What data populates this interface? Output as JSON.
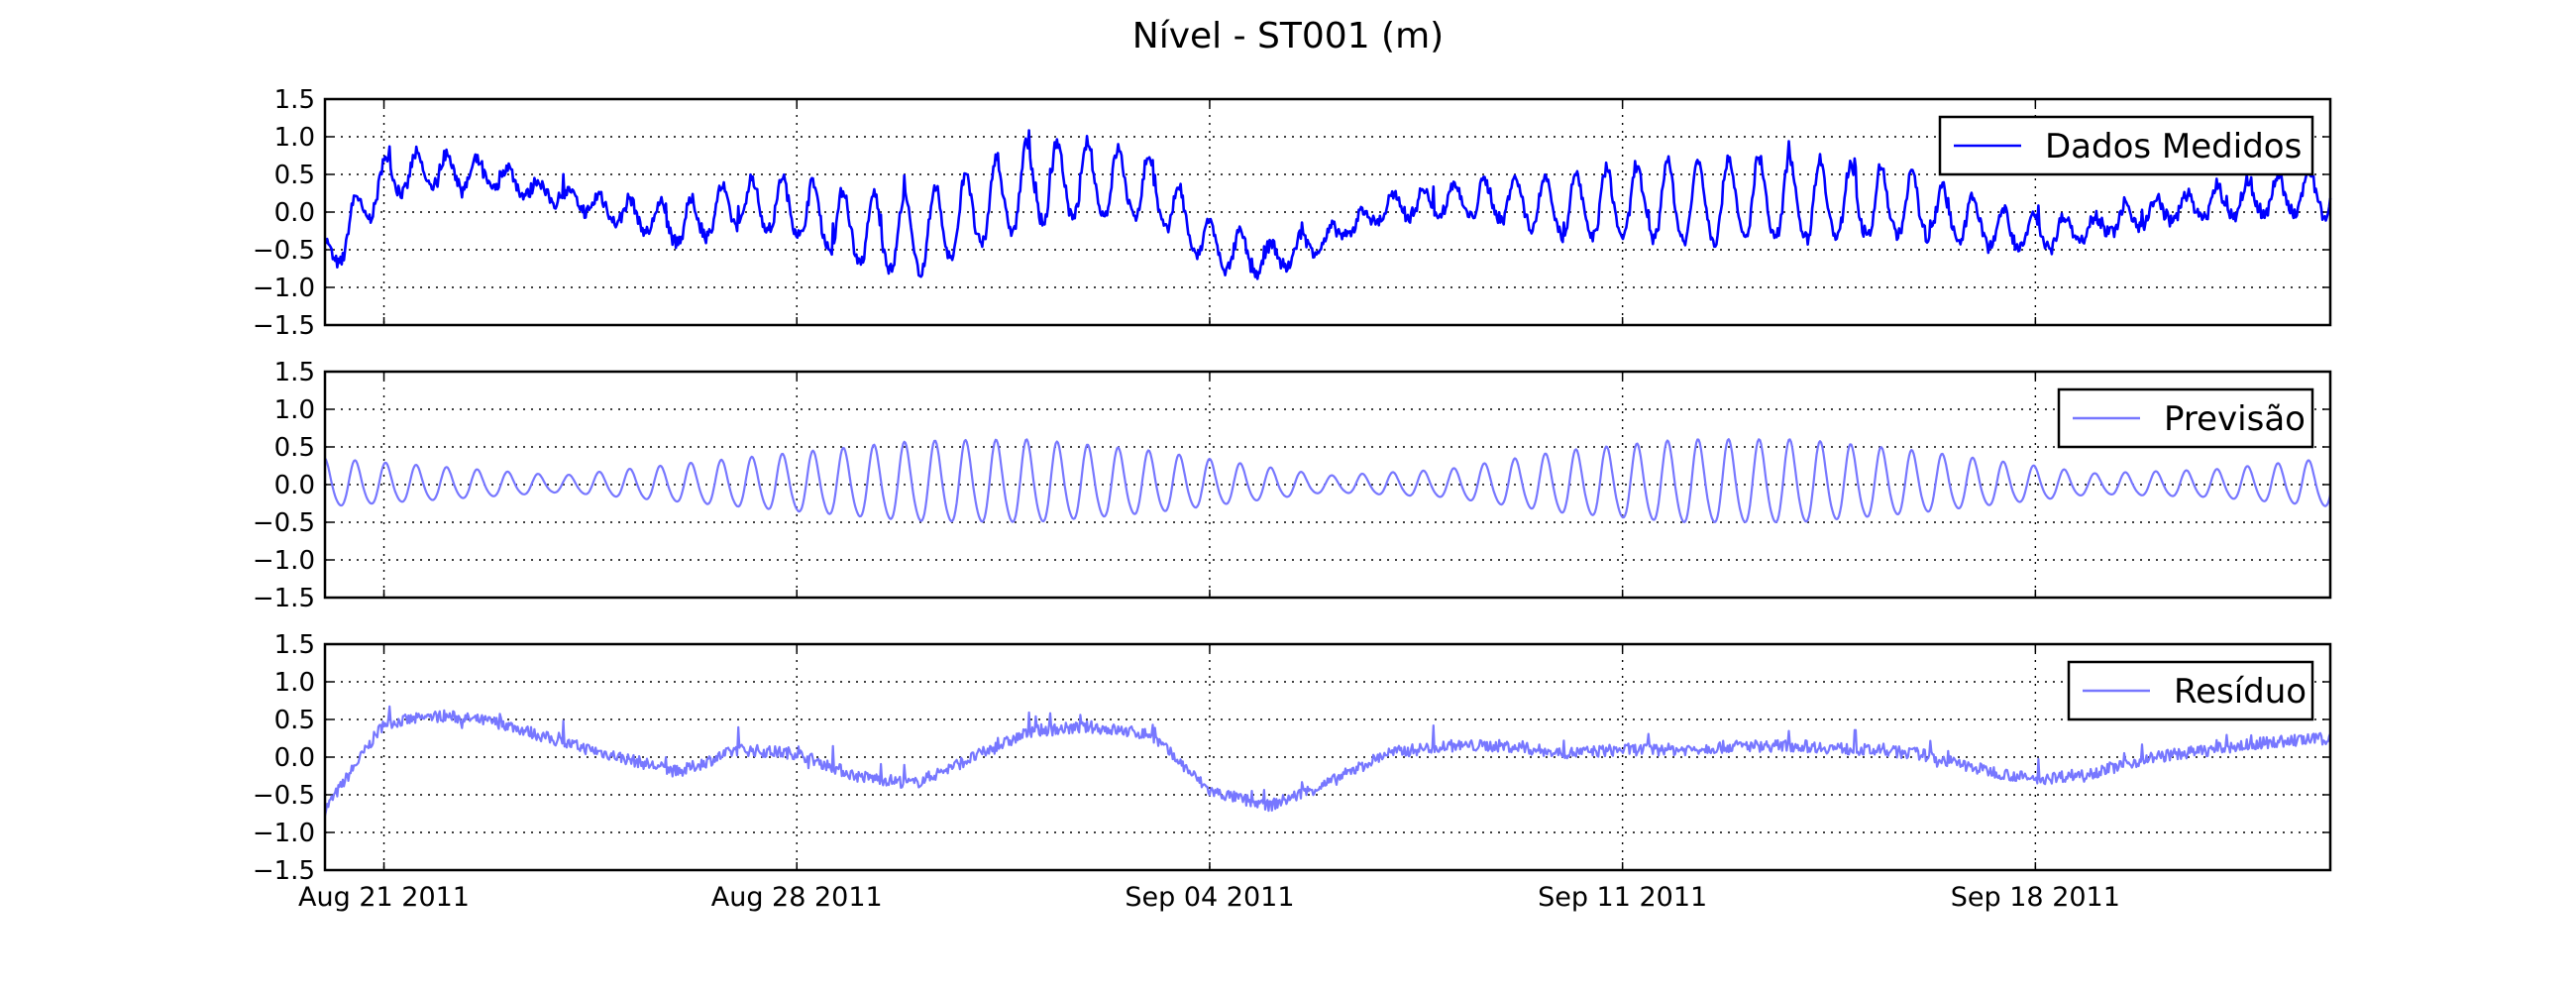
{
  "figure": {
    "title": "Nível - ST001 (m)"
  },
  "chart_data": [
    {
      "type": "line",
      "panel": "top",
      "series": [
        {
          "name": "Dados Medidos",
          "color": "#0000ff",
          "kind": "measured"
        }
      ],
      "x_range": [
        "2011-08-20",
        "2011-09-23"
      ],
      "x_tick_labels": [
        "Aug 21 2011",
        "Aug 28 2011",
        "Sep 04 2011",
        "Sep 11 2011",
        "Sep 18 2011"
      ],
      "x_tick_dates": [
        "2011-08-21",
        "2011-08-28",
        "2011-09-04",
        "2011-09-11",
        "2011-09-18"
      ],
      "ylim": [
        -1.5,
        1.5
      ],
      "y_ticks": [
        -1.5,
        -1.0,
        -0.5,
        0.0,
        0.5,
        1.0,
        1.5
      ],
      "y_tick_labels": [
        "−1.5",
        "−1.0",
        "−0.5",
        "0.0",
        "0.5",
        "1.0",
        "1.5"
      ],
      "grid": true,
      "legend_position": "top-right",
      "samples": [
        [
          "2011-08-20",
          -0.7
        ],
        [
          "2011-08-21",
          0.45
        ],
        [
          "2011-08-22",
          0.55
        ],
        [
          "2011-08-23",
          0.45
        ],
        [
          "2011-08-24",
          0.2
        ],
        [
          "2011-08-25",
          0.0
        ],
        [
          "2011-08-26",
          -0.2
        ],
        [
          "2011-08-27",
          0.1
        ],
        [
          "2011-08-28",
          0.05
        ],
        [
          "2011-08-29",
          -0.25
        ],
        [
          "2011-08-30",
          -0.35
        ],
        [
          "2011-08-31",
          0.0
        ],
        [
          "2011-09-01",
          0.35
        ],
        [
          "2011-09-02",
          0.4
        ],
        [
          "2011-09-03",
          0.3
        ],
        [
          "2011-09-04",
          -0.45
        ],
        [
          "2011-09-05",
          -0.65
        ],
        [
          "2011-09-06",
          -0.35
        ],
        [
          "2011-09-07",
          0.05
        ],
        [
          "2011-09-08",
          0.15
        ],
        [
          "2011-09-09",
          0.15
        ],
        [
          "2011-09-10",
          0.05
        ],
        [
          "2011-09-11",
          0.1
        ],
        [
          "2011-09-12",
          0.1
        ],
        [
          "2011-09-13",
          0.15
        ],
        [
          "2011-09-14",
          0.15
        ],
        [
          "2011-09-15",
          0.1
        ],
        [
          "2011-09-16",
          0.05
        ],
        [
          "2011-09-17",
          -0.15
        ],
        [
          "2011-09-18",
          -0.3
        ],
        [
          "2011-09-19",
          -0.2
        ],
        [
          "2011-09-20",
          0.0
        ],
        [
          "2011-09-21",
          0.1
        ],
        [
          "2011-09-22",
          0.2
        ],
        [
          "2011-09-23",
          0.25
        ]
      ]
    },
    {
      "type": "line",
      "panel": "middle",
      "series": [
        {
          "name": "Previsão",
          "color": "#7777ff",
          "kind": "tide"
        }
      ],
      "x_range": [
        "2011-08-20",
        "2011-09-23"
      ],
      "ylim": [
        -1.5,
        1.5
      ],
      "y_ticks": [
        -1.5,
        -1.0,
        -0.5,
        0.0,
        0.5,
        1.0,
        1.5
      ],
      "y_tick_labels": [
        "−1.5",
        "−1.0",
        "−0.5",
        "0.0",
        "0.5",
        "1.0",
        "1.5"
      ],
      "grid": true,
      "legend_position": "top-right",
      "amplitude_envelope": [
        [
          "2011-08-20",
          0.35
        ],
        [
          "2011-08-24",
          0.12
        ],
        [
          "2011-08-27",
          0.35
        ],
        [
          "2011-08-30",
          0.58
        ],
        [
          "2011-09-01",
          0.6
        ],
        [
          "2011-09-03",
          0.45
        ],
        [
          "2011-09-06",
          0.12
        ],
        [
          "2011-09-08",
          0.2
        ],
        [
          "2011-09-10",
          0.45
        ],
        [
          "2011-09-12",
          0.6
        ],
        [
          "2011-09-14",
          0.6
        ],
        [
          "2011-09-16",
          0.45
        ],
        [
          "2011-09-19",
          0.15
        ],
        [
          "2011-09-21",
          0.2
        ],
        [
          "2011-09-23",
          0.35
        ]
      ]
    },
    {
      "type": "line",
      "panel": "bottom",
      "series": [
        {
          "name": "Resíduo",
          "color": "#7777ff",
          "kind": "residual"
        }
      ],
      "x_range": [
        "2011-08-20",
        "2011-09-23"
      ],
      "ylim": [
        -1.5,
        1.5
      ],
      "y_ticks": [
        -1.5,
        -1.0,
        -0.5,
        0.0,
        0.5,
        1.0,
        1.5
      ],
      "y_tick_labels": [
        "−1.5",
        "−1.0",
        "−0.5",
        "0.0",
        "0.5",
        "1.0",
        "1.5"
      ],
      "grid": true,
      "legend_position": "top-right"
    }
  ]
}
